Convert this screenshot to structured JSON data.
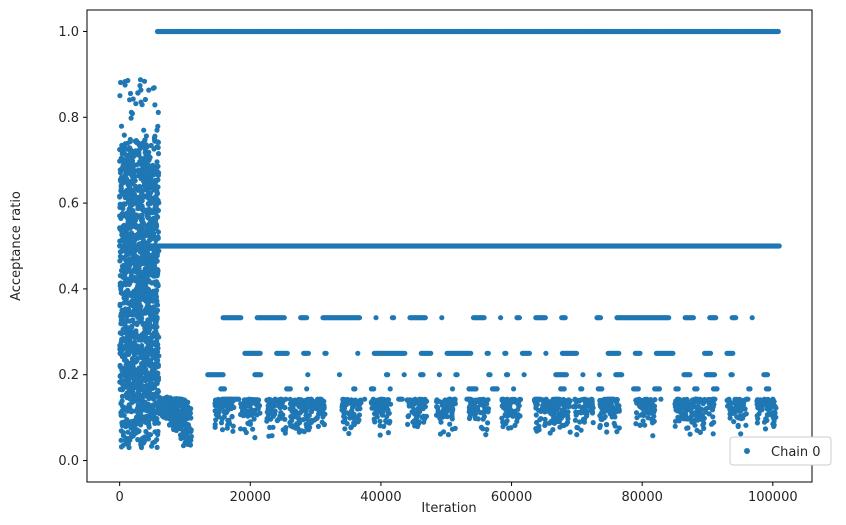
{
  "chart_data": {
    "type": "scatter",
    "xlabel": "Iteration",
    "ylabel": "Acceptance ratio",
    "xlim": [
      -5000,
      106000
    ],
    "ylim": [
      -0.05,
      1.05
    ],
    "x_ticks": [
      0,
      20000,
      40000,
      60000,
      80000,
      100000
    ],
    "x_tick_labels": [
      "0",
      "20000",
      "40000",
      "60000",
      "80000",
      "100000"
    ],
    "y_ticks": [
      0.0,
      0.2,
      0.4,
      0.6,
      0.8,
      1.0
    ],
    "y_tick_labels": [
      "0.0",
      "0.2",
      "0.4",
      "0.6",
      "0.8",
      "1.0"
    ],
    "grid": false,
    "legend_position": "bottom-right",
    "series": [
      {
        "name": "Chain 0",
        "color": "#1f77b4",
        "marker": "circle",
        "bands": [
          {
            "y": 1.0,
            "x_start": 5800,
            "x_end": 101000
          },
          {
            "y": 0.5,
            "x_start": 0,
            "x_end": 101000
          },
          {
            "y": 0.333,
            "x_start": 13500,
            "x_end": 101000
          },
          {
            "y": 0.25,
            "x_start": 14500,
            "x_end": 101000
          },
          {
            "y": 0.2,
            "x_start": 13500,
            "x_end": 101000
          },
          {
            "y": 0.167,
            "x_start": 15500,
            "x_end": 101000
          },
          {
            "y": 0.143,
            "x_start": 6000,
            "x_end": 101000
          }
        ],
        "burn_in_cloud": {
          "x_range": [
            0,
            6000
          ],
          "y_range": [
            0.02,
            0.9
          ]
        },
        "transition_tail": {
          "x_range": [
            6000,
            11000
          ],
          "y_range": [
            0.02,
            0.2
          ]
        }
      }
    ]
  }
}
